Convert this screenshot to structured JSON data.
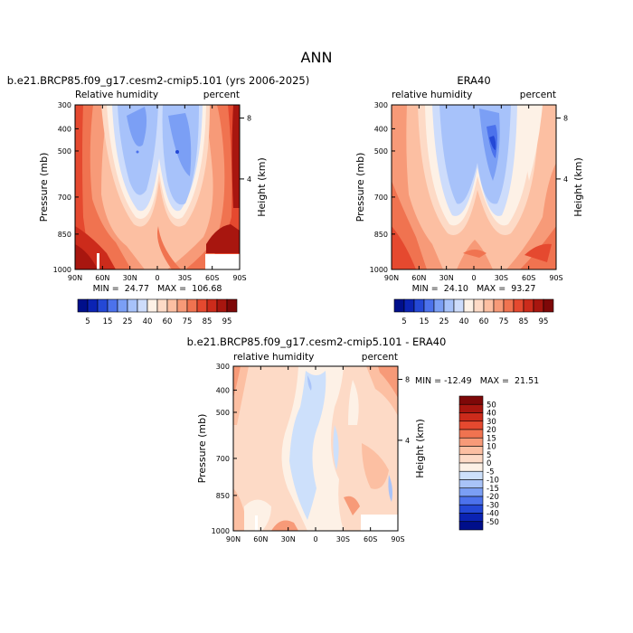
{
  "figure_title": "ANN",
  "chart_data": [
    {
      "type": "heatmap",
      "title": "b.e21.BRCP85.f09_g17.cesm2-cmip5.101 (yrs 2006-2025)",
      "left_label": "Relative humidity",
      "right_label": "percent",
      "ylabel": "Pressure (mb)",
      "ylabel_right": "Height (km)",
      "x_ticks": [
        "90N",
        "60N",
        "30N",
        "0",
        "30S",
        "60S",
        "90S"
      ],
      "y_ticks": [
        "300",
        "400",
        "500",
        "700",
        "850",
        "1000"
      ],
      "height_ticks": [
        "8",
        "4"
      ],
      "stats": "MIN =  24.77   MAX =  106.68",
      "min": 24.77,
      "max": 106.68
    },
    {
      "type": "heatmap",
      "title": "ERA40",
      "left_label": "relative humidity",
      "right_label": "percent",
      "ylabel": "Pressure (mb)",
      "ylabel_right": "Height (km)",
      "x_ticks": [
        "90N",
        "60N",
        "30N",
        "0",
        "30S",
        "60S",
        "90S"
      ],
      "y_ticks": [
        "300",
        "400",
        "500",
        "700",
        "850",
        "1000"
      ],
      "height_ticks": [
        "8",
        "4"
      ],
      "stats": "MIN =  24.10   MAX =  93.27",
      "min": 24.1,
      "max": 93.27
    },
    {
      "type": "heatmap",
      "title": "b.e21.BRCP85.f09_g17.cesm2-cmip5.101 - ERA40",
      "left_label": "relative humidity",
      "right_label": "percent",
      "ylabel": "Pressure (mb)",
      "ylabel_right": "Height (km)",
      "x_ticks": [
        "90N",
        "60N",
        "30N",
        "0",
        "30S",
        "60S",
        "90S"
      ],
      "y_ticks": [
        "300",
        "400",
        "500",
        "700",
        "850",
        "1000"
      ],
      "height_ticks": [
        "8",
        "4"
      ],
      "stats": "MIN = -12.49   MAX =  21.51",
      "min": -12.49,
      "max": 21.51
    }
  ],
  "legend_abs": {
    "labels": [
      "5",
      "15",
      "25",
      "40",
      "60",
      "75",
      "85",
      "95"
    ],
    "colors": [
      "#000f8b",
      "#0b23b3",
      "#2448d6",
      "#4c72ec",
      "#7b9ff5",
      "#a7c2fa",
      "#cddcfb",
      "#fdf1e6",
      "#fddac6",
      "#fcbfa2",
      "#f79a78",
      "#f07350",
      "#e5492f",
      "#cc2b1b",
      "#a8160f",
      "#7e0808"
    ]
  },
  "legend_diff": {
    "labels": [
      "50",
      "40",
      "30",
      "20",
      "15",
      "10",
      "5",
      "0",
      "-5",
      "-10",
      "-15",
      "-20",
      "-30",
      "-40",
      "-50"
    ],
    "colors": [
      "#7e0808",
      "#a8160f",
      "#cc2b1b",
      "#e5492f",
      "#f07350",
      "#f79a78",
      "#fcbfa2",
      "#fddac6",
      "#fdf1e6",
      "#cde0fb",
      "#a9c3f8",
      "#7b9ff5",
      "#4c72ec",
      "#2448d6",
      "#0b23b3",
      "#000f8b"
    ]
  }
}
